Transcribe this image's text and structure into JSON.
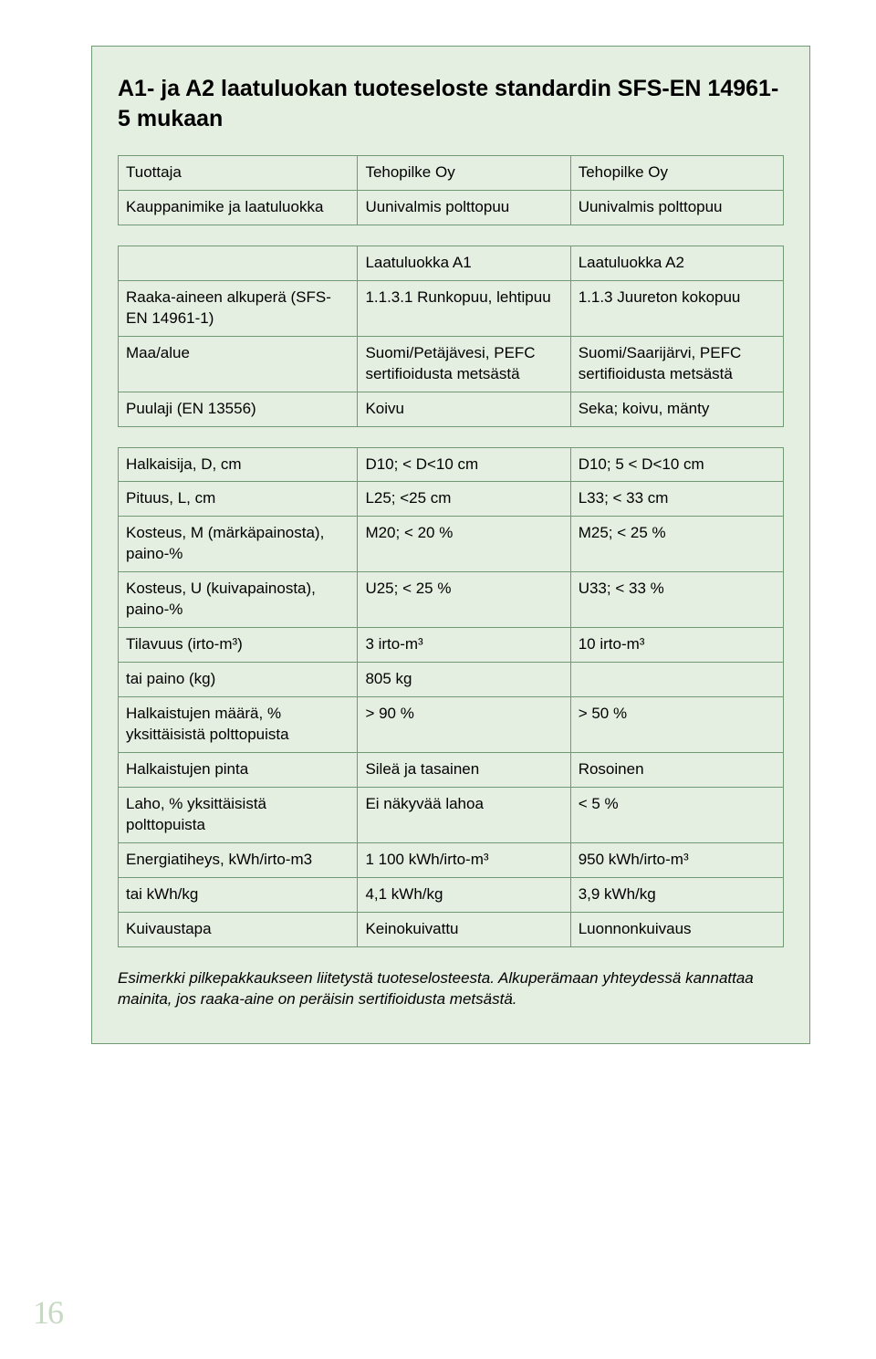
{
  "heading": "A1- ja A2 laatuluokan tuoteseloste standardin SFS-EN 14961-5 mukaan",
  "table1": {
    "r0": {
      "c0": "Tuottaja",
      "c1": "Tehopilke Oy",
      "c2": "Tehopilke Oy"
    },
    "r1": {
      "c0": "Kauppanimike ja laatuluokka",
      "c1": "Uunivalmis polttopuu",
      "c2": "Uunivalmis polttopuu"
    }
  },
  "table2": {
    "r0": {
      "c0": "",
      "c1": "Laatuluokka A1",
      "c2": "Laatuluokka A2"
    },
    "r1": {
      "c0": "Raaka-aineen alkuperä (SFS-EN 14961-1)",
      "c1": "1.1.3.1 Runkopuu, lehtipuu",
      "c2": "1.1.3 Juureton kokopuu"
    },
    "r2": {
      "c0": "Maa/alue",
      "c1": "Suomi/Petäjävesi, PEFC sertifioidusta metsästä",
      "c2": "Suomi/Saarijärvi, PEFC sertifioidusta metsästä"
    },
    "r3": {
      "c0": "Puulaji (EN 13556)",
      "c1": "Koivu",
      "c2": "Seka; koivu, mänty"
    }
  },
  "table3": {
    "r0": {
      "c0": "Halkaisija, D, cm",
      "c1": "D10; < D<10 cm",
      "c2": "D10; 5 < D<10 cm"
    },
    "r1": {
      "c0": "Pituus, L, cm",
      "c1": "L25; <25 cm",
      "c2": "L33; < 33 cm"
    },
    "r2": {
      "c0": "Kosteus, M (märkäpainosta), paino-%",
      "c1": "M20; < 20 %",
      "c2": "M25; < 25 %"
    },
    "r3": {
      "c0": "Kosteus, U (kuivapainosta), paino-%",
      "c1": "U25; < 25 %",
      "c2": "U33; < 33 %"
    },
    "r4": {
      "c0": "Tilavuus (irto-m³)",
      "c1": "3 irto-m³",
      "c2": "10 irto-m³"
    },
    "r5": {
      "c0": "tai paino (kg)",
      "c1": "805 kg",
      "c2": ""
    },
    "r6": {
      "c0": "Halkaistujen määrä, % yksittäisistä polttopuista",
      "c1": "> 90 %",
      "c2": "> 50 %"
    },
    "r7": {
      "c0": "Halkaistujen pinta",
      "c1": "Sileä ja tasainen",
      "c2": "Rosoinen"
    },
    "r8": {
      "c0": "Laho, % yksittäisistä polttopuista",
      "c1": "Ei näkyvää lahoa",
      "c2": "< 5 %"
    },
    "r9": {
      "c0": "Energiatiheys, kWh/irto-m3",
      "c1": "1 100 kWh/irto-m³",
      "c2": "950 kWh/irto-m³"
    },
    "r10": {
      "c0": "tai kWh/kg",
      "c1": "4,1 kWh/kg",
      "c2": "3,9 kWh/kg"
    },
    "r11": {
      "c0": "Kuivaustapa",
      "c1": "Keinokuivattu",
      "c2": "Luonnonkuivaus"
    }
  },
  "caption": "Esimerkki pilkepakkaukseen liitetystä tuoteselosteesta. Alkuperämaan yhteydessä kannattaa mainita, jos raaka-aine on peräisin sertifioidusta metsästä.",
  "pageNumber": "16",
  "colors": {
    "panel_bg": "#e5efe1",
    "border": "#6f9a74",
    "text": "#000000",
    "pagenum": "#c7d9c3"
  }
}
